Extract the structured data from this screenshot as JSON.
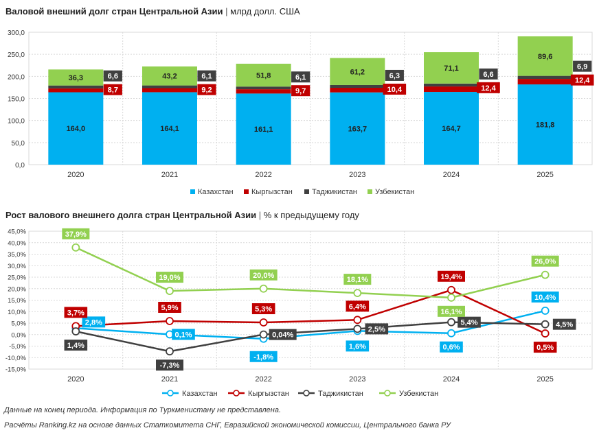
{
  "chart1_title_main": "Валовой внешний долг стран Центральной Азии",
  "chart1_title_unit": "млрд долл. США",
  "chart2_title_main": "Рост валового внешнего долга стран Центральной Азии",
  "chart2_title_unit": "% к предыдущему году",
  "title_separator": "|",
  "note": "Данные на конец периода. Информация по Туркменистану не представлена.",
  "source": "Расчёты Ranking.kz на основе данных Статкомитета СНГ, Евразийской экономической комиссии, Центрального банка РУ",
  "colors": {
    "Казахстан": "#00b0f0",
    "Кыргызстан": "#c00000",
    "Таджикистан": "#404040",
    "Узбекистан": "#92d050"
  },
  "chart_data": [
    {
      "type": "bar",
      "stacked": true,
      "title": "Валовой внешний долг стран Центральной Азии",
      "ylabel": "млрд долл. США",
      "ylim": [
        0,
        300
      ],
      "yticks": [
        "0,0",
        "50,0",
        "100,0",
        "150,0",
        "200,0",
        "250,0",
        "300,0"
      ],
      "categories": [
        "2020",
        "2021",
        "2022",
        "2023",
        "2024",
        "2025"
      ],
      "series": [
        {
          "name": "Казахстан",
          "values": [
            164.0,
            164.1,
            161.1,
            163.7,
            164.7,
            181.8
          ],
          "labels": [
            "164,0",
            "164,1",
            "161,1",
            "163,7",
            "164,7",
            "181,8"
          ]
        },
        {
          "name": "Кыргызстан",
          "values": [
            8.7,
            9.2,
            9.7,
            10.4,
            12.4,
            12.4
          ],
          "labels": [
            "8,7",
            "9,2",
            "9,7",
            "10,4",
            "12,4",
            "12,4"
          ]
        },
        {
          "name": "Таджикистан",
          "values": [
            6.6,
            6.1,
            6.1,
            6.3,
            6.6,
            6.9
          ],
          "labels": [
            "6,6",
            "6,1",
            "6,1",
            "6,3",
            "6,6",
            "6,9"
          ]
        },
        {
          "name": "Узбекистан",
          "values": [
            36.3,
            43.2,
            51.8,
            61.2,
            71.1,
            89.6
          ],
          "labels": [
            "36,3",
            "43,2",
            "51,8",
            "61,2",
            "71,1",
            "89,6"
          ]
        }
      ],
      "grid": true,
      "legend": "bottom"
    },
    {
      "type": "line",
      "title": "Рост валового внешнего долга стран Центральной Азии",
      "ylabel": "% к предыдущему году",
      "ylim": [
        -15,
        45
      ],
      "yticks": [
        "-15,0%",
        "-10,0%",
        "-5,0%",
        "0,0%",
        "5,0%",
        "10,0%",
        "15,0%",
        "20,0%",
        "25,0%",
        "30,0%",
        "35,0%",
        "40,0%",
        "45,0%"
      ],
      "categories": [
        "2020",
        "2021",
        "2022",
        "2023",
        "2024",
        "2025"
      ],
      "series": [
        {
          "name": "Казахстан",
          "values": [
            2.8,
            0.1,
            -1.8,
            1.6,
            0.6,
            10.4
          ],
          "labels": [
            "2,8%",
            "0,1%",
            "-1,8%",
            "1,6%",
            "0,6%",
            "10,4%"
          ]
        },
        {
          "name": "Кыргызстан",
          "values": [
            3.7,
            5.9,
            5.3,
            6.4,
            19.4,
            0.5
          ],
          "labels": [
            "3,7%",
            "5,9%",
            "5,3%",
            "6,4%",
            "19,4%",
            "0,5%"
          ]
        },
        {
          "name": "Таджикистан",
          "values": [
            1.4,
            -7.3,
            0.04,
            2.5,
            5.4,
            4.5
          ],
          "labels": [
            "1,4%",
            "-7,3%",
            "0,04%",
            "2,5%",
            "5,4%",
            "4,5%"
          ]
        },
        {
          "name": "Узбекистан",
          "values": [
            37.9,
            19.0,
            20.0,
            18.1,
            16.1,
            26.0
          ],
          "labels": [
            "37,9%",
            "19,0%",
            "20,0%",
            "18,1%",
            "16,1%",
            "26,0%"
          ]
        }
      ],
      "grid": true,
      "legend": "bottom"
    }
  ]
}
